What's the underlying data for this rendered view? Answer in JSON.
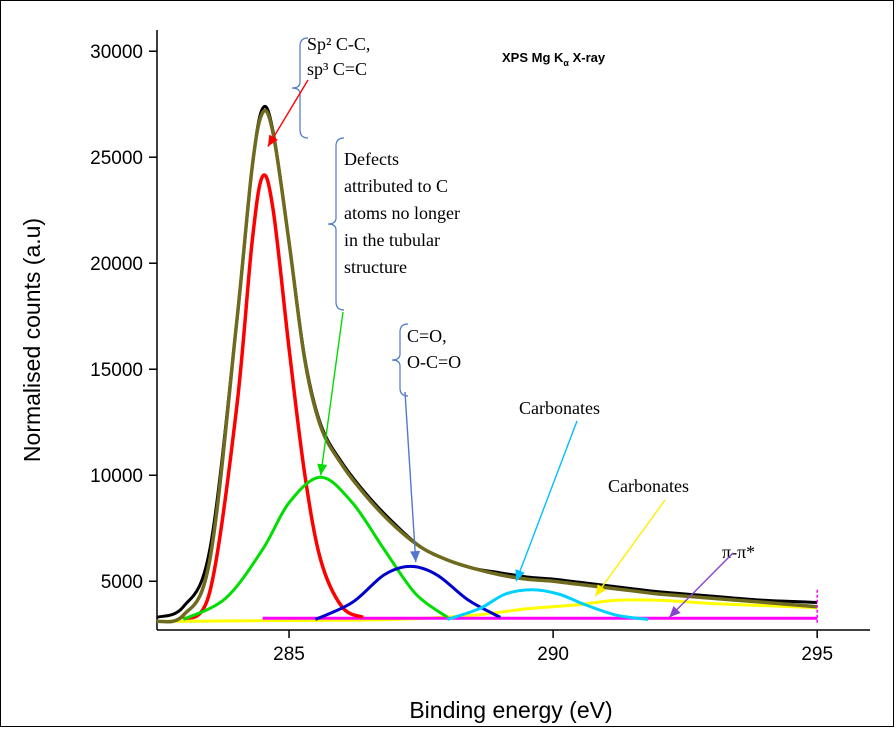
{
  "chart_data": {
    "type": "line",
    "title": "XPS Mg Kα X-ray",
    "title_parts": {
      "main": "XPS Mg K",
      "subscript": "α",
      "tail": " X-ray"
    },
    "xlabel": "Binding energy (eV)",
    "ylabel": "Normalised counts (a.u)",
    "xlim": [
      282.5,
      296.0
    ],
    "ylim": [
      2700,
      31000
    ],
    "x_ticks": [
      285,
      290,
      295
    ],
    "y_ticks": [
      5000,
      10000,
      15000,
      20000,
      25000,
      30000
    ],
    "grid": false,
    "series": [
      {
        "color": "#000000",
        "x": [
          282.5,
          283.0,
          283.5,
          284.0,
          284.3,
          284.5,
          284.7,
          285.0,
          285.3,
          285.6,
          286.0,
          286.5,
          287.0,
          287.5,
          288.0,
          288.5,
          289.0,
          289.5,
          290.0,
          290.5,
          291.0,
          291.5,
          292.0,
          293.0,
          294.0,
          295.0
        ],
        "y": [
          3300,
          3800,
          6500,
          17000,
          24500,
          27300,
          26200,
          21000,
          15500,
          12400,
          10600,
          9000,
          7700,
          6600,
          6000,
          5600,
          5400,
          5200,
          5100,
          4950,
          4800,
          4650,
          4500,
          4300,
          4100,
          4000
        ]
      },
      {
        "color": "#6e6a1e",
        "x": [
          282.5,
          283.0,
          283.5,
          284.0,
          284.3,
          284.5,
          284.7,
          285.0,
          285.3,
          285.6,
          286.0,
          286.5,
          287.0,
          287.5,
          288.0,
          288.5,
          289.0,
          289.5,
          290.0,
          290.5,
          291.0,
          291.5,
          292.0,
          293.0,
          294.0,
          295.0
        ],
        "y": [
          3100,
          3400,
          6000,
          17000,
          24500,
          27100,
          26100,
          21000,
          15400,
          12300,
          10500,
          8900,
          7600,
          6600,
          6000,
          5600,
          5300,
          5100,
          5000,
          4850,
          4700,
          4550,
          4400,
          4200,
          4000,
          3800
        ]
      },
      {
        "color": "#ff0000",
        "x": [
          283.0,
          283.5,
          284.0,
          284.3,
          284.5,
          284.7,
          285.0,
          285.3,
          285.6,
          286.0,
          286.4
        ],
        "y": [
          3200,
          4500,
          13000,
          21000,
          24100,
          22500,
          16000,
          10000,
          6000,
          3800,
          3300
        ]
      },
      {
        "color": "#00dd00",
        "x": [
          283.0,
          283.8,
          284.5,
          285.0,
          285.6,
          286.2,
          286.8,
          287.4,
          288.0
        ],
        "y": [
          3200,
          4200,
          6500,
          8700,
          9900,
          8700,
          6500,
          4400,
          3300
        ]
      },
      {
        "color": "#0000cc",
        "x": [
          285.5,
          286.2,
          286.8,
          287.3,
          287.8,
          288.4,
          289.0
        ],
        "y": [
          3200,
          4000,
          5300,
          5700,
          5300,
          4100,
          3300
        ]
      },
      {
        "color": "#00d0ff",
        "x": [
          288.0,
          288.6,
          289.1,
          289.6,
          290.1,
          290.6,
          291.2,
          291.8
        ],
        "y": [
          3200,
          3700,
          4400,
          4600,
          4400,
          3900,
          3400,
          3200
        ]
      },
      {
        "color": "#ffff00",
        "x": [
          282.5,
          285.0,
          287.0,
          288.5,
          289.5,
          290.5,
          291.2,
          292.0,
          293.0,
          294.0,
          295.0
        ],
        "y": [
          3100,
          3150,
          3200,
          3400,
          3700,
          3900,
          4100,
          4100,
          3950,
          3850,
          3750
        ]
      },
      {
        "color": "#ff00ff",
        "x": [
          284.5,
          286.0,
          288.0,
          290.0,
          292.0,
          294.0,
          295.0
        ],
        "y": [
          3250,
          3250,
          3250,
          3250,
          3250,
          3250,
          3250
        ]
      }
    ],
    "annotations": [
      {
        "lines": [
          "Sp² C-C,",
          "sp³ C=C"
        ],
        "arrow_color": "#ff0000",
        "points_to": [
          284.6,
          25500
        ]
      },
      {
        "lines": [
          "Defects",
          "attributed to C",
          "atoms no longer",
          "in the tubular",
          "structure"
        ],
        "arrow_color": "#00dd00",
        "points_to": [
          285.6,
          10000
        ]
      },
      {
        "lines": [
          "C=O,",
          "O-C=O"
        ],
        "arrow_color": "#5577cc",
        "points_to": [
          287.4,
          5900
        ]
      },
      {
        "lines": [
          "Carbonates"
        ],
        "arrow_color": "#00bfff",
        "points_to": [
          289.3,
          5000
        ]
      },
      {
        "lines": [
          "Carbonates"
        ],
        "arrow_color": "#ffee00",
        "points_to": [
          290.8,
          4300
        ]
      },
      {
        "lines": [
          "π-π*"
        ],
        "arrow_color": "#8844cc",
        "points_to": [
          292.2,
          3300
        ]
      }
    ]
  }
}
